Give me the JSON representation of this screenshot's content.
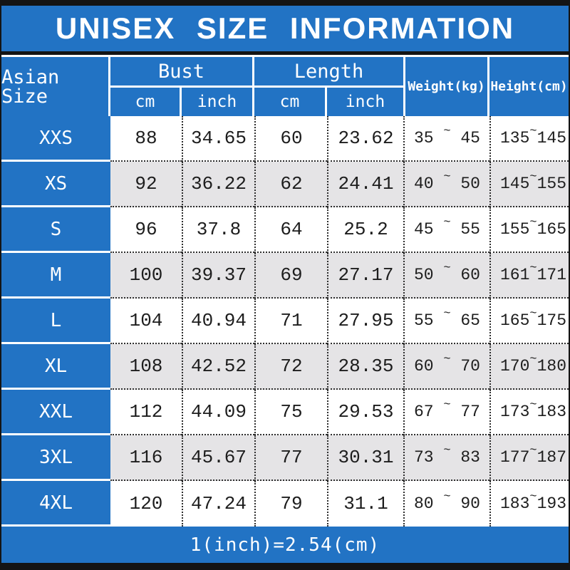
{
  "title": "UNISEX SIZE INFORMATION",
  "header": {
    "size": "Asian Size",
    "bust": "Bust",
    "length": "Length",
    "bust_cm": "cm",
    "bust_inch": "inch",
    "length_cm": "cm",
    "length_inch": "inch",
    "weight": "Weight(kg)",
    "height": "Height(cm)"
  },
  "range_separator": "~",
  "footer": "1(inch)=2.54(cm)",
  "colors": {
    "accent_blue": "#2273c4",
    "row_alt_gray": "#e5e4e6",
    "text_dark": "#1d1d1d",
    "frame_black": "#141414"
  },
  "rows": [
    {
      "size": "XXS",
      "bust_cm": "88",
      "bust_inch": "34.65",
      "length_cm": "60",
      "length_inch": "23.62",
      "weight_min": "35",
      "weight_max": "45",
      "height_min": "135",
      "height_max": "145"
    },
    {
      "size": "XS",
      "bust_cm": "92",
      "bust_inch": "36.22",
      "length_cm": "62",
      "length_inch": "24.41",
      "weight_min": "40",
      "weight_max": "50",
      "height_min": "145",
      "height_max": "155"
    },
    {
      "size": "S",
      "bust_cm": "96",
      "bust_inch": "37.8",
      "length_cm": "64",
      "length_inch": "25.2",
      "weight_min": "45",
      "weight_max": "55",
      "height_min": "155",
      "height_max": "165"
    },
    {
      "size": "M",
      "bust_cm": "100",
      "bust_inch": "39.37",
      "length_cm": "69",
      "length_inch": "27.17",
      "weight_min": "50",
      "weight_max": "60",
      "height_min": "161",
      "height_max": "171"
    },
    {
      "size": "L",
      "bust_cm": "104",
      "bust_inch": "40.94",
      "length_cm": "71",
      "length_inch": "27.95",
      "weight_min": "55",
      "weight_max": "65",
      "height_min": "165",
      "height_max": "175"
    },
    {
      "size": "XL",
      "bust_cm": "108",
      "bust_inch": "42.52",
      "length_cm": "72",
      "length_inch": "28.35",
      "weight_min": "60",
      "weight_max": "70",
      "height_min": "170",
      "height_max": "180"
    },
    {
      "size": "XXL",
      "bust_cm": "112",
      "bust_inch": "44.09",
      "length_cm": "75",
      "length_inch": "29.53",
      "weight_min": "67",
      "weight_max": "77",
      "height_min": "173",
      "height_max": "183"
    },
    {
      "size": "3XL",
      "bust_cm": "116",
      "bust_inch": "45.67",
      "length_cm": "77",
      "length_inch": "30.31",
      "weight_min": "73",
      "weight_max": "83",
      "height_min": "177",
      "height_max": "187"
    },
    {
      "size": "4XL",
      "bust_cm": "120",
      "bust_inch": "47.24",
      "length_cm": "79",
      "length_inch": "31.1",
      "weight_min": "80",
      "weight_max": "90",
      "height_min": "183",
      "height_max": "193"
    }
  ]
}
